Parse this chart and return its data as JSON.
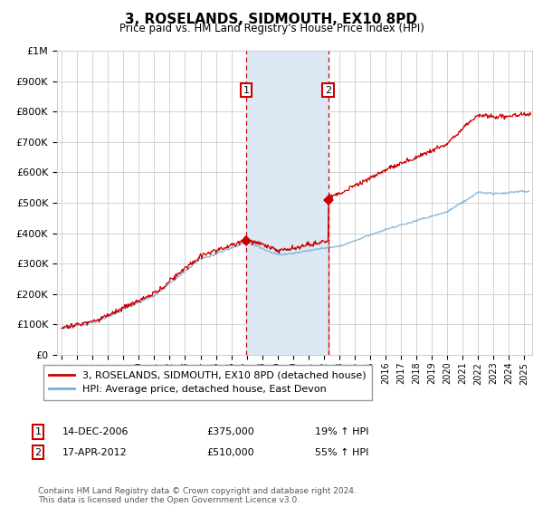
{
  "title": "3, ROSELANDS, SIDMOUTH, EX10 8PD",
  "subtitle": "Price paid vs. HM Land Registry's House Price Index (HPI)",
  "ylim": [
    0,
    1000000
  ],
  "yticks": [
    0,
    100000,
    200000,
    300000,
    400000,
    500000,
    600000,
    700000,
    800000,
    900000,
    1000000
  ],
  "xlim_start": 1994.7,
  "xlim_end": 2025.5,
  "sale1_x": 2006.96,
  "sale1_y": 375000,
  "sale1_label": "1",
  "sale1_date": "14-DEC-2006",
  "sale1_price": "£375,000",
  "sale1_hpi": "19% ↑ HPI",
  "sale2_x": 2012.29,
  "sale2_y": 510000,
  "sale2_label": "2",
  "sale2_date": "17-APR-2012",
  "sale2_price": "£510,000",
  "sale2_hpi": "55% ↑ HPI",
  "line1_color": "#cc0000",
  "line2_color": "#7ab0d4",
  "shaded_color": "#dce9f5",
  "legend1_label": "3, ROSELANDS, SIDMOUTH, EX10 8PD (detached house)",
  "legend2_label": "HPI: Average price, detached house, East Devon",
  "footer": "Contains HM Land Registry data © Crown copyright and database right 2024.\nThis data is licensed under the Open Government Licence v3.0.",
  "background_color": "#ffffff",
  "grid_color": "#cccccc"
}
